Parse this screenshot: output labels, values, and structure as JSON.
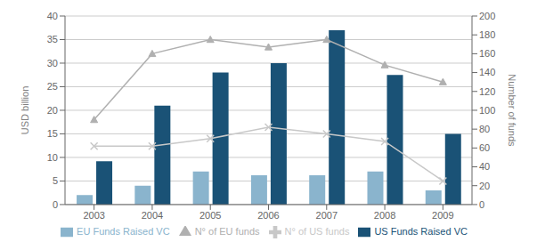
{
  "chart_data": {
    "type": "bar",
    "categories": [
      "2003",
      "2004",
      "2005",
      "2006",
      "2007",
      "2008",
      "2009"
    ],
    "ylabel": "USD billion",
    "y2label": "Number of funds",
    "ylim": [
      0,
      40
    ],
    "yticks": [
      0,
      5,
      10,
      15,
      20,
      25,
      30,
      35,
      40
    ],
    "y2lim": [
      0,
      200
    ],
    "y2ticks": [
      0,
      20,
      40,
      60,
      80,
      100,
      120,
      140,
      160,
      180,
      200
    ],
    "grid": true,
    "legend": "bottom",
    "series": [
      {
        "name": "EU Funds Raised VC",
        "type": "bar",
        "color": "#8ab4cd",
        "values": [
          2.0,
          4.0,
          7.0,
          6.2,
          6.2,
          7.0,
          3.0
        ]
      },
      {
        "name": "US Funds Raised VC",
        "type": "bar",
        "color": "#1a5276",
        "values": [
          9.2,
          21.0,
          28.0,
          30.0,
          37.0,
          27.5,
          15.0
        ]
      },
      {
        "name": "N° of EU funds",
        "type": "line",
        "axis": "y2",
        "color": "#b0b0b0",
        "marker": "triangle",
        "values": [
          90,
          160,
          175,
          167,
          175,
          148,
          130
        ]
      },
      {
        "name": "N° of US funds",
        "type": "line",
        "axis": "y2",
        "color": "#c8c8c8",
        "marker": "cross",
        "values": [
          62,
          62,
          70,
          82,
          75,
          67,
          25
        ]
      }
    ]
  }
}
